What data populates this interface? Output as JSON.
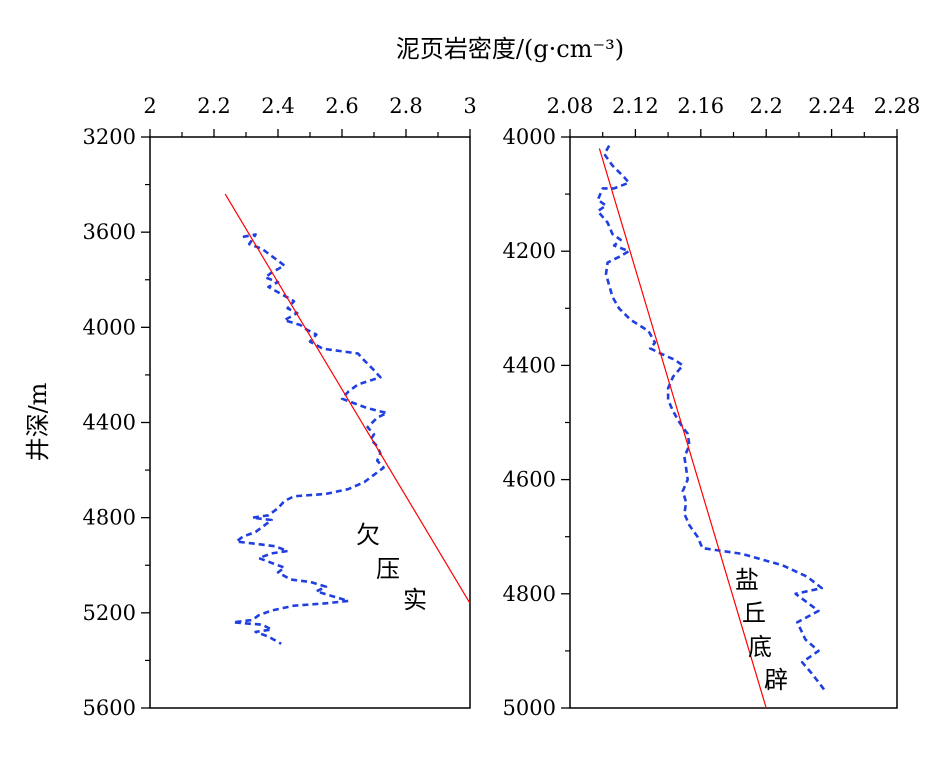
{
  "chart_data": [
    {
      "type": "line",
      "xlabel": "泥页岩密度/(g·cm⁻³)",
      "ylabel": "井深/m",
      "xlim": [
        2,
        3
      ],
      "ylim": [
        3200,
        5600
      ],
      "y_inverted": true,
      "x_ticks": [
        "2",
        "2.2",
        "2.4",
        "2.6",
        "2.8",
        "3"
      ],
      "y_ticks": [
        "3200",
        "3600",
        "4000",
        "4400",
        "4800",
        "5200",
        "5600"
      ],
      "annotation": [
        "欠",
        "压",
        "实"
      ],
      "series": [
        {
          "style": "dashed",
          "color": "#1f3fe0",
          "points": [
            [
              2.29,
              3620
            ],
            [
              2.33,
              3610
            ],
            [
              2.31,
              3650
            ],
            [
              2.35,
              3670
            ],
            [
              2.38,
              3700
            ],
            [
              2.42,
              3740
            ],
            [
              2.38,
              3770
            ],
            [
              2.36,
              3790
            ],
            [
              2.4,
              3810
            ],
            [
              2.37,
              3830
            ],
            [
              2.41,
              3860
            ],
            [
              2.45,
              3890
            ],
            [
              2.43,
              3920
            ],
            [
              2.46,
              3940
            ],
            [
              2.42,
              3970
            ],
            [
              2.47,
              3990
            ],
            [
              2.49,
              4010
            ],
            [
              2.52,
              4030
            ],
            [
              2.5,
              4060
            ],
            [
              2.54,
              4090
            ],
            [
              2.65,
              4110
            ],
            [
              2.67,
              4140
            ],
            [
              2.7,
              4180
            ],
            [
              2.72,
              4210
            ],
            [
              2.65,
              4240
            ],
            [
              2.62,
              4270
            ],
            [
              2.6,
              4300
            ],
            [
              2.64,
              4320
            ],
            [
              2.68,
              4340
            ],
            [
              2.74,
              4360
            ],
            [
              2.71,
              4380
            ],
            [
              2.68,
              4420
            ],
            [
              2.7,
              4450
            ],
            [
              2.69,
              4470
            ],
            [
              2.71,
              4500
            ],
            [
              2.72,
              4530
            ],
            [
              2.71,
              4560
            ],
            [
              2.73,
              4590
            ],
            [
              2.7,
              4620
            ],
            [
              2.67,
              4650
            ],
            [
              2.62,
              4680
            ],
            [
              2.55,
              4700
            ],
            [
              2.45,
              4710
            ],
            [
              2.42,
              4730
            ],
            [
              2.4,
              4760
            ],
            [
              2.37,
              4790
            ],
            [
              2.32,
              4800
            ],
            [
              2.38,
              4810
            ],
            [
              2.36,
              4830
            ],
            [
              2.33,
              4860
            ],
            [
              2.29,
              4880
            ],
            [
              2.27,
              4900
            ],
            [
              2.33,
              4910
            ],
            [
              2.39,
              4920
            ],
            [
              2.43,
              4940
            ],
            [
              2.38,
              4950
            ],
            [
              2.34,
              4970
            ],
            [
              2.38,
              4990
            ],
            [
              2.42,
              5010
            ],
            [
              2.4,
              5030
            ],
            [
              2.44,
              5060
            ],
            [
              2.5,
              5070
            ],
            [
              2.55,
              5090
            ],
            [
              2.52,
              5110
            ],
            [
              2.57,
              5130
            ],
            [
              2.62,
              5150
            ],
            [
              2.55,
              5160
            ],
            [
              2.45,
              5170
            ],
            [
              2.38,
              5190
            ],
            [
              2.34,
              5210
            ],
            [
              2.32,
              5230
            ],
            [
              2.26,
              5240
            ],
            [
              2.35,
              5250
            ],
            [
              2.38,
              5270
            ],
            [
              2.33,
              5280
            ],
            [
              2.37,
              5300
            ],
            [
              2.41,
              5330
            ]
          ]
        },
        {
          "style": "solid",
          "color": "#ff0000",
          "points": [
            [
              2.235,
              3440
            ],
            [
              3,
              5160
            ]
          ]
        }
      ]
    },
    {
      "type": "line",
      "xlim": [
        2.08,
        2.28
      ],
      "ylim": [
        4000,
        5000
      ],
      "y_inverted": true,
      "x_ticks": [
        "2.08",
        "2.12",
        "2.16",
        "2.2",
        "2.24",
        "2.28"
      ],
      "y_ticks": [
        "4000",
        "4200",
        "4400",
        "4600",
        "4800",
        "5000"
      ],
      "annotation": [
        "盐",
        "丘",
        "底",
        "辟"
      ],
      "series": [
        {
          "style": "dashed",
          "color": "#1f3fe0",
          "points": [
            [
              2.104,
              4015
            ],
            [
              2.101,
              4030
            ],
            [
              2.106,
              4050
            ],
            [
              2.113,
              4070
            ],
            [
              2.116,
              4080
            ],
            [
              2.107,
              4090
            ],
            [
              2.1,
              4090
            ],
            [
              2.097,
              4110
            ],
            [
              2.102,
              4120
            ],
            [
              2.097,
              4130
            ],
            [
              2.103,
              4150
            ],
            [
              2.106,
              4170
            ],
            [
              2.111,
              4180
            ],
            [
              2.107,
              4190
            ],
            [
              2.116,
              4200
            ],
            [
              2.11,
              4210
            ],
            [
              2.103,
              4220
            ],
            [
              2.102,
              4240
            ],
            [
              2.104,
              4260
            ],
            [
              2.106,
              4280
            ],
            [
              2.11,
              4300
            ],
            [
              2.117,
              4320
            ],
            [
              2.128,
              4340
            ],
            [
              2.132,
              4360
            ],
            [
              2.129,
              4370
            ],
            [
              2.136,
              4380
            ],
            [
              2.144,
              4390
            ],
            [
              2.149,
              4400
            ],
            [
              2.143,
              4420
            ],
            [
              2.14,
              4440
            ],
            [
              2.14,
              4460
            ],
            [
              2.143,
              4480
            ],
            [
              2.147,
              4500
            ],
            [
              2.152,
              4520
            ],
            [
              2.153,
              4540
            ],
            [
              2.15,
              4560
            ],
            [
              2.151,
              4580
            ],
            [
              2.152,
              4600
            ],
            [
              2.149,
              4620
            ],
            [
              2.151,
              4640
            ],
            [
              2.15,
              4660
            ],
            [
              2.153,
              4680
            ],
            [
              2.158,
              4700
            ],
            [
              2.161,
              4720
            ],
            [
              2.185,
              4730
            ],
            [
              2.21,
              4750
            ],
            [
              2.225,
              4770
            ],
            [
              2.234,
              4790
            ],
            [
              2.218,
              4800
            ],
            [
              2.232,
              4830
            ],
            [
              2.219,
              4850
            ],
            [
              2.224,
              4880
            ],
            [
              2.232,
              4900
            ],
            [
              2.222,
              4920
            ],
            [
              2.228,
              4940
            ],
            [
              2.236,
              4970
            ]
          ]
        },
        {
          "style": "solid",
          "color": "#ff0000",
          "points": [
            [
              2.098,
              4020
            ],
            [
              2.2,
              5000
            ]
          ]
        }
      ]
    }
  ]
}
